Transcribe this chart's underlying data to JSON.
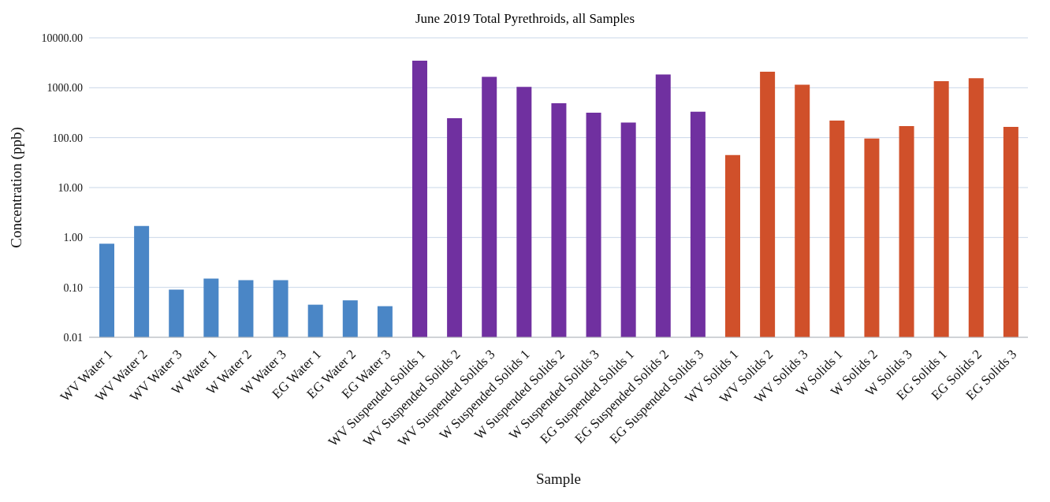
{
  "chart_data": {
    "type": "bar",
    "title": "June 2019 Total Pyrethroids,  all Samples",
    "xlabel": "Sample",
    "ylabel": "Concentration (ppb)",
    "categories": [
      "WV Water 1",
      "WV Water 2",
      "WV Water 3",
      "W Water 1",
      "W Water 2",
      "W Water 3",
      "EG Water 1",
      "EG Water 2",
      "EG Water 3",
      "WV Suspended Solids 1",
      "WV Suspended Solids 2",
      "WV Suspended Solids 3",
      "W Suspended Solids 1",
      "W Suspended Solids 2",
      "W Suspended Solids 3",
      "EG Suspended Solids 1",
      "EG Suspended Solids 2",
      "EG Suspended Solids 3",
      "WV Solids 1",
      "WV Solids 2",
      "WV Solids 3",
      "W Solids 1",
      "W Solids 2",
      "W Solids 3",
      "EG Solids 1",
      "EG Solids 2",
      "EG Solids 3"
    ],
    "values": [
      0.75,
      1.7,
      0.09,
      0.15,
      0.14,
      0.14,
      0.045,
      0.055,
      0.042,
      3500,
      245,
      1650,
      1040,
      490,
      316,
      200,
      1840,
      330,
      45,
      2100,
      1150,
      220,
      96,
      170,
      1350,
      1550,
      165
    ],
    "colors": [
      "#4a86c6",
      "#4a86c6",
      "#4a86c6",
      "#4a86c6",
      "#4a86c6",
      "#4a86c6",
      "#4a86c6",
      "#4a86c6",
      "#4a86c6",
      "#7030a0",
      "#7030a0",
      "#7030a0",
      "#7030a0",
      "#7030a0",
      "#7030a0",
      "#7030a0",
      "#7030a0",
      "#7030a0",
      "#d0502a",
      "#d0502a",
      "#d0502a",
      "#d0502a",
      "#d0502a",
      "#d0502a",
      "#d0502a",
      "#d0502a",
      "#d0502a"
    ],
    "log": "y",
    "ylim": [
      0.01,
      10000
    ],
    "yticks": [
      {
        "value": 0.01,
        "label": "0.01"
      },
      {
        "value": 0.1,
        "label": "0.10"
      },
      {
        "value": 1,
        "label": "1.00"
      },
      {
        "value": 10,
        "label": "10.00"
      },
      {
        "value": 100,
        "label": "100.00"
      },
      {
        "value": 1000,
        "label": "1000.00"
      },
      {
        "value": 10000,
        "label": "10000.00"
      }
    ],
    "grid": "y",
    "legend": false
  }
}
